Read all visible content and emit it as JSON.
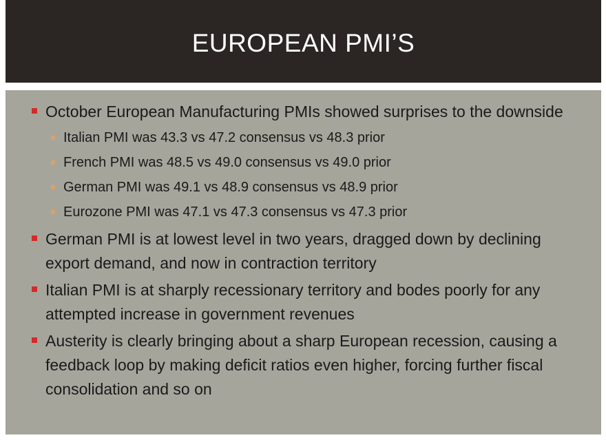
{
  "slide": {
    "title": "EUROPEAN PMI’S",
    "bullets": [
      {
        "text": "October European Manufacturing PMIs showed surprises to the downside",
        "sub": [
          "Italian PMI was 43.3 vs 47.2 consensus vs 48.3 prior",
          "French PMI was 48.5 vs 49.0 consensus vs 49.0 prior",
          "German PMI was 49.1 vs 48.9 consensus vs 48.9 prior",
          "Eurozone PMI was 47.1 vs 47.3 consensus vs 47.3 prior"
        ]
      },
      {
        "text": "German PMI is at lowest level in two years, dragged down by declining export demand, and now in contraction territory"
      },
      {
        "text": "Italian PMI is at sharply recessionary territory and bodes poorly for any attempted increase in government revenues"
      },
      {
        "text": "Austerity is clearly bringing about a sharp European recession, causing a feedback loop by making deficit ratios even higher, forcing further fiscal consolidation and so on"
      }
    ]
  },
  "colors": {
    "title_bar": "#2b2523",
    "content_bg": "#a6a59c",
    "bullet_marker": "#d42a2a",
    "sub_bullet_marker": "#d9a26a"
  }
}
